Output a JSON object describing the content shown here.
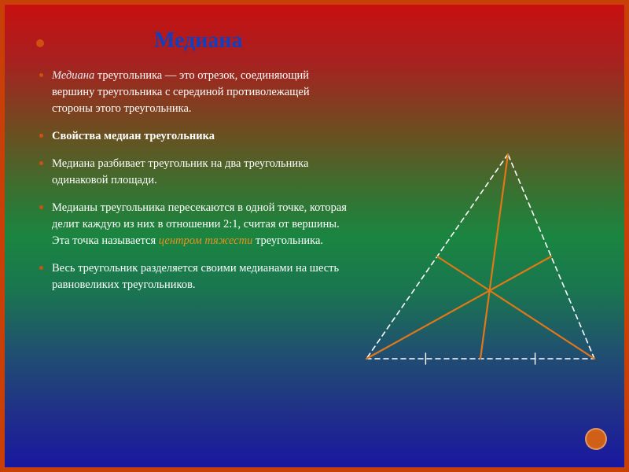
{
  "slide": {
    "title": "Медиана",
    "bullets": [
      {
        "type": "definition",
        "term": "Медиана",
        "rest": " треугольника — это отрезок, соединяющий вершину треугольника с серединой противолежащей стороны этого треугольника."
      },
      {
        "type": "bold",
        "text": "Свойства медиан треугольника"
      },
      {
        "type": "plain",
        "text": "Медиана разбивает треугольник на два треугольника одинаковой площади."
      },
      {
        "type": "accent",
        "before": "Медианы треугольника пересекаются в одной точке, которая делит каждую из них в отношении 2:1, считая от вершины. Эта точка называется ",
        "accent": "центром тяжести",
        "after": " треугольника."
      },
      {
        "type": "plain",
        "text": "Весь треугольник разделяется своими медианами на шесть равновеликих треугольников."
      }
    ]
  },
  "colors": {
    "title_color": "#1040c0",
    "bullet_dot": "#d05010",
    "text": "#ffffff",
    "accent": "#e89020",
    "border": "#c84008",
    "nav_dot": "#d06018"
  },
  "typography": {
    "title_fontsize_pt": 22,
    "body_fontsize_pt": 11,
    "font_family": "serif"
  },
  "diagram": {
    "type": "geometric-figure",
    "description": "triangle with three medians meeting at centroid",
    "vertices": {
      "A": [
        200,
        10
      ],
      "B": [
        20,
        270
      ],
      "C": [
        310,
        270
      ]
    },
    "midpoints": {
      "M_BC": [
        165,
        270
      ],
      "M_AC": [
        255,
        140
      ],
      "M_AB": [
        110,
        140
      ]
    },
    "centroid": [
      176.7,
      183.3
    ],
    "triangle_stroke": "#ffffff",
    "triangle_dash": "6,5",
    "triangle_width": 1.6,
    "median_stroke": "#e07818",
    "median_width": 2.2,
    "tick_stroke": "#ffffff",
    "tick_width": 1.4,
    "tick_len": 7
  }
}
